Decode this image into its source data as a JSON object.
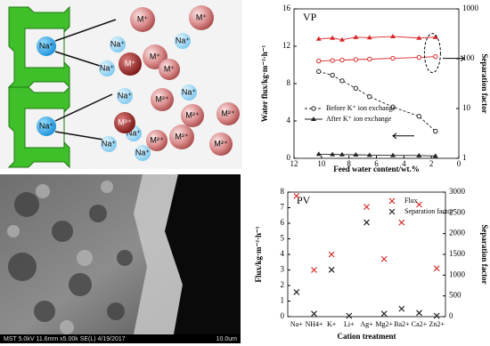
{
  "diagram": {
    "sodium": "Na⁺",
    "monovalent": "M⁺",
    "divalent": "M²⁺"
  },
  "micrograph": {
    "info": "MST 5.0kV 11.6mm x5.00k SE(L) 4/19/2017",
    "scale": "10.0um"
  },
  "chart_data": [
    {
      "type": "line",
      "annotation": "VP",
      "xlabel": "Feed water content/wt.%",
      "ylabel": "Water flux/kg·m⁻²·h⁻¹",
      "y2label": "Separation factor",
      "x": [
        10.2,
        9.2,
        8.5,
        7.5,
        6.5,
        4.8,
        2.9,
        1.7
      ],
      "xlim": [
        12,
        0
      ],
      "xticks": [
        12,
        10,
        8,
        6,
        4,
        2,
        0
      ],
      "ylim": [
        0,
        16
      ],
      "yticks": [
        0,
        4,
        8,
        12,
        16
      ],
      "y2lim": [
        1,
        1000
      ],
      "y2ticks": [
        1,
        10,
        100,
        1000
      ],
      "y2log": true,
      "legend": "center-left",
      "series": [
        {
          "name": "Before K⁺ ion exchange",
          "color": "#222222",
          "marker": "circle-open",
          "dash": true,
          "values": [
            9.3,
            8.9,
            8.3,
            7.5,
            6.6,
            5.5,
            4.5,
            2.9
          ]
        },
        {
          "name": "After K⁺ ion exchange",
          "color": "#222222",
          "marker": "triangle",
          "values": [
            0.45,
            0.42,
            0.4,
            0.38,
            0.35,
            0.32,
            0.3,
            0.25
          ]
        },
        {
          "color": "#d62728",
          "marker": "circle-open",
          "axis": "y2",
          "values": [
            90,
            92,
            94,
            96,
            98,
            102,
            106,
            110
          ]
        },
        {
          "color": "#d62728",
          "marker": "triangle",
          "axis": "y2",
          "values": [
            250,
            260,
            240,
            270,
            265,
            280,
            260,
            270
          ]
        }
      ]
    },
    {
      "type": "scatter",
      "annotation": "PV",
      "xlabel": "Cation  treatment",
      "ylabel": "Flux/kg·m⁻²·h⁻¹",
      "y2label": "Separation  factor",
      "categories": [
        "Na+",
        "NH4+",
        "K+",
        "Li+",
        "Ag+",
        "Mg2+",
        "Ba2+",
        "Ca2+",
        "Zn2+"
      ],
      "ylim": [
        0,
        8
      ],
      "yticks": [
        0,
        1,
        2,
        3,
        4,
        5,
        6,
        7,
        8
      ],
      "y2lim": [
        0,
        3000
      ],
      "y2ticks": [
        0,
        500,
        1000,
        1500,
        2000,
        2500,
        3000
      ],
      "legend": "upper-right",
      "series": [
        {
          "name": "Flux",
          "color": "#d62728",
          "marker": "x",
          "values": [
            7.75,
            3.0,
            4.0,
            null,
            7.05,
            3.7,
            6.05,
            7.2,
            3.1
          ]
        },
        {
          "name": "Separation factor",
          "color": "#222222",
          "marker": "x",
          "axis": "y2",
          "values": [
            590,
            70,
            1130,
            20,
            2270,
            70,
            190,
            90,
            20
          ]
        }
      ]
    }
  ]
}
